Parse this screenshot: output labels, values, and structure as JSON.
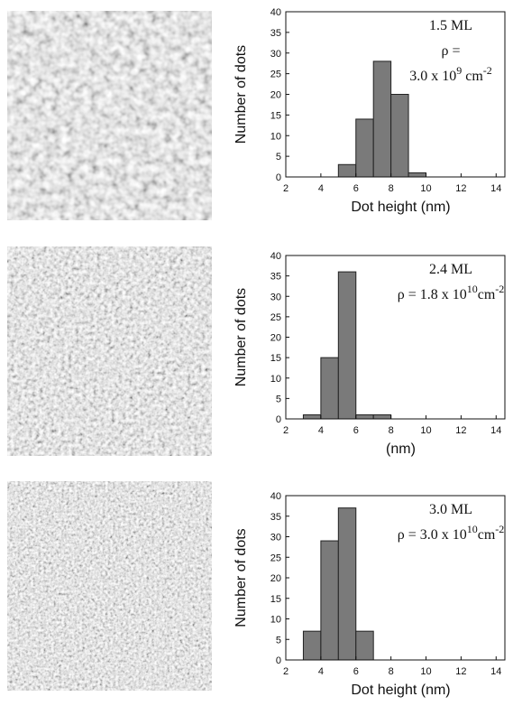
{
  "chart_data": [
    {
      "type": "histogram",
      "annotation_lines": [
        [
          "1.5 ML"
        ],
        [
          "ρ ="
        ],
        [
          "3.0 x 10",
          "9",
          " cm",
          "-2"
        ]
      ],
      "x_label": "Dot height (nm)",
      "y_label": "Number of dots",
      "bins": [
        5,
        6,
        7,
        8,
        9,
        10
      ],
      "values": [
        3,
        14,
        28,
        20,
        1
      ],
      "color": "#7a7a7a",
      "xlim": [
        2,
        14.5
      ],
      "xticks": [
        2,
        4,
        6,
        8,
        10,
        12,
        14
      ],
      "ylim": [
        0,
        40
      ],
      "yticks": [
        0,
        5,
        10,
        15,
        20,
        25,
        30,
        35,
        40
      ]
    },
    {
      "type": "histogram",
      "annotation_lines": [
        [
          "2.4 ML"
        ],
        [
          "ρ = 1.8 x 10",
          "10",
          "cm",
          "-2"
        ]
      ],
      "x_label": "(nm)",
      "y_label": "Number of dots",
      "bins": [
        3,
        4,
        5,
        6,
        7,
        8
      ],
      "values": [
        1,
        15,
        36,
        1,
        1
      ],
      "color": "#7a7a7a",
      "xlim": [
        2,
        14.5
      ],
      "xticks": [
        2,
        4,
        6,
        8,
        10,
        12,
        14
      ],
      "ylim": [
        0,
        40
      ],
      "yticks": [
        0,
        5,
        10,
        15,
        20,
        25,
        30,
        35,
        40
      ]
    },
    {
      "type": "histogram",
      "annotation_lines": [
        [
          "3.0 ML"
        ],
        [
          "ρ = 3.0 x 10",
          "10",
          "cm",
          "-2"
        ]
      ],
      "x_label": "Dot height (nm)",
      "y_label": "Number of dots",
      "bins": [
        3,
        4,
        5,
        6,
        7
      ],
      "values": [
        7,
        29,
        37,
        7
      ],
      "color": "#7a7a7a",
      "xlim": [
        2,
        14.5
      ],
      "xticks": [
        2,
        4,
        6,
        8,
        10,
        12,
        14
      ],
      "ylim": [
        0,
        40
      ],
      "yticks": [
        0,
        5,
        10,
        15,
        20,
        25,
        30,
        35,
        40
      ]
    }
  ]
}
